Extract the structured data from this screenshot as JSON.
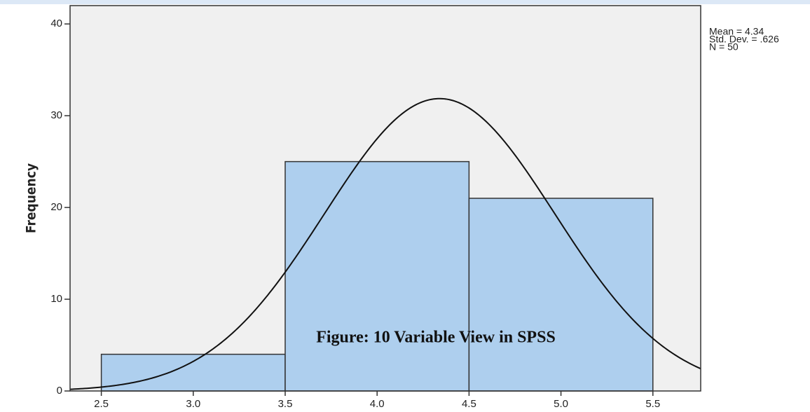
{
  "chart_data": {
    "type": "histogram",
    "y_label": "Frequency",
    "annotation": "Figure: 10 Variable View in SPSS",
    "bins": [
      2.5,
      3.5,
      4.5,
      5.5
    ],
    "counts": [
      4,
      25,
      21
    ],
    "color": "#aecfee",
    "edge_color": "#333333",
    "plot_background": "#f0f0f0",
    "xlim": [
      2.33,
      5.76
    ],
    "ylim": [
      0,
      42
    ],
    "xticks": [
      {
        "value": 2.5,
        "label": "2.5"
      },
      {
        "value": 3,
        "label": "3.0"
      },
      {
        "value": 3.5,
        "label": "3.5"
      },
      {
        "value": 4,
        "label": "4.0"
      },
      {
        "value": 4.5,
        "label": "4.5"
      },
      {
        "value": 5,
        "label": "5.0"
      },
      {
        "value": 5.5,
        "label": "5.5"
      }
    ],
    "yticks": [
      0,
      10,
      20,
      30,
      40
    ],
    "stats": [
      {
        "value": 4.34,
        "label": "Mean = 4.34"
      },
      {
        "value": 0.626,
        "label": "Std. Dev. = .626"
      },
      {
        "value": 50,
        "label": "N = 50"
      }
    ]
  }
}
